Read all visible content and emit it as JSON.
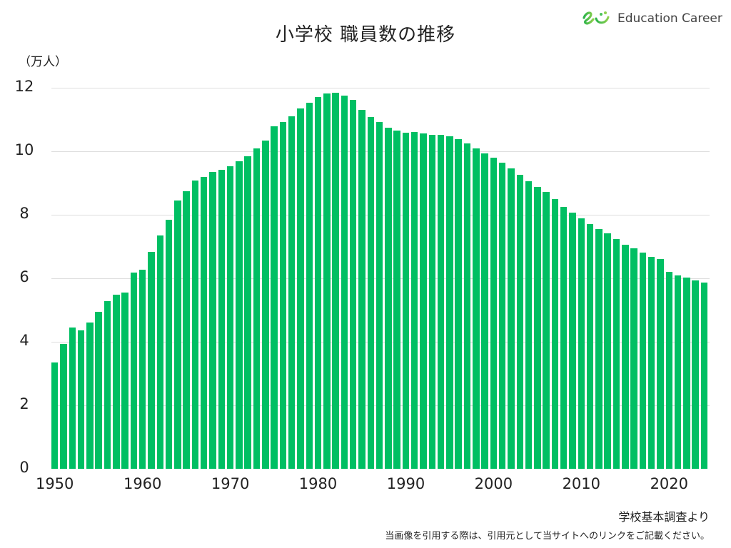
{
  "header": {
    "title": "小学校 職員数の推移",
    "logo_text": "Education Career",
    "logo_icon": "smile-leaf-logo-icon"
  },
  "axis": {
    "unit_label": "（万人）",
    "y_ticks": [
      "0",
      "2",
      "4",
      "6",
      "8",
      "10",
      "12"
    ],
    "x_ticks": [
      "1950",
      "1960",
      "1970",
      "1980",
      "1990",
      "2000",
      "2010",
      "2020"
    ]
  },
  "footer": {
    "source": "学校基本調査より",
    "note": "当画像を引用する際は、引用元として当サイトへのリンクをご記載ください。"
  },
  "colors": {
    "bar": "#00bf63",
    "grid": "#dedede",
    "logo_green_dark": "#2bb34a",
    "logo_green_light": "#8fd14f"
  },
  "chart_data": {
    "type": "bar",
    "title": "小学校 職員数の推移",
    "xlabel": "",
    "ylabel": "（万人）",
    "ylim": [
      0,
      12
    ],
    "grid": true,
    "legend": null,
    "x_tick_labels": [
      "1950",
      "1960",
      "1970",
      "1980",
      "1990",
      "2000",
      "2010",
      "2020"
    ],
    "y_tick_labels": [
      "0",
      "2",
      "4",
      "6",
      "8",
      "10",
      "12"
    ],
    "categories": [
      1950,
      1951,
      1952,
      1953,
      1954,
      1955,
      1956,
      1957,
      1958,
      1959,
      1960,
      1961,
      1962,
      1963,
      1964,
      1965,
      1966,
      1967,
      1968,
      1969,
      1970,
      1971,
      1972,
      1973,
      1974,
      1975,
      1976,
      1977,
      1978,
      1979,
      1980,
      1981,
      1982,
      1983,
      1984,
      1985,
      1986,
      1987,
      1988,
      1989,
      1990,
      1991,
      1992,
      1993,
      1994,
      1995,
      1996,
      1997,
      1998,
      1999,
      2000,
      2001,
      2002,
      2003,
      2004,
      2005,
      2006,
      2007,
      2008,
      2009,
      2010,
      2011,
      2012,
      2013,
      2014,
      2015,
      2016,
      2017,
      2018,
      2019,
      2020,
      2021,
      2022,
      2023,
      2024
    ],
    "values": [
      3.35,
      3.93,
      4.45,
      4.36,
      4.61,
      4.94,
      5.28,
      5.48,
      5.55,
      6.18,
      6.27,
      6.83,
      7.35,
      7.84,
      8.45,
      8.74,
      9.08,
      9.19,
      9.35,
      9.42,
      9.53,
      9.69,
      9.84,
      10.09,
      10.34,
      10.79,
      10.92,
      11.1,
      11.35,
      11.53,
      11.71,
      11.82,
      11.84,
      11.75,
      11.62,
      11.3,
      11.08,
      10.92,
      10.74,
      10.65,
      10.58,
      10.61,
      10.56,
      10.52,
      10.52,
      10.47,
      10.38,
      10.25,
      10.09,
      9.93,
      9.81,
      9.64,
      9.46,
      9.26,
      9.06,
      8.88,
      8.72,
      8.5,
      8.25,
      8.06,
      7.89,
      7.7,
      7.56,
      7.42,
      7.24,
      7.06,
      6.94,
      6.8,
      6.68,
      6.6,
      6.21,
      6.1,
      6.02,
      5.94,
      5.86
    ]
  }
}
